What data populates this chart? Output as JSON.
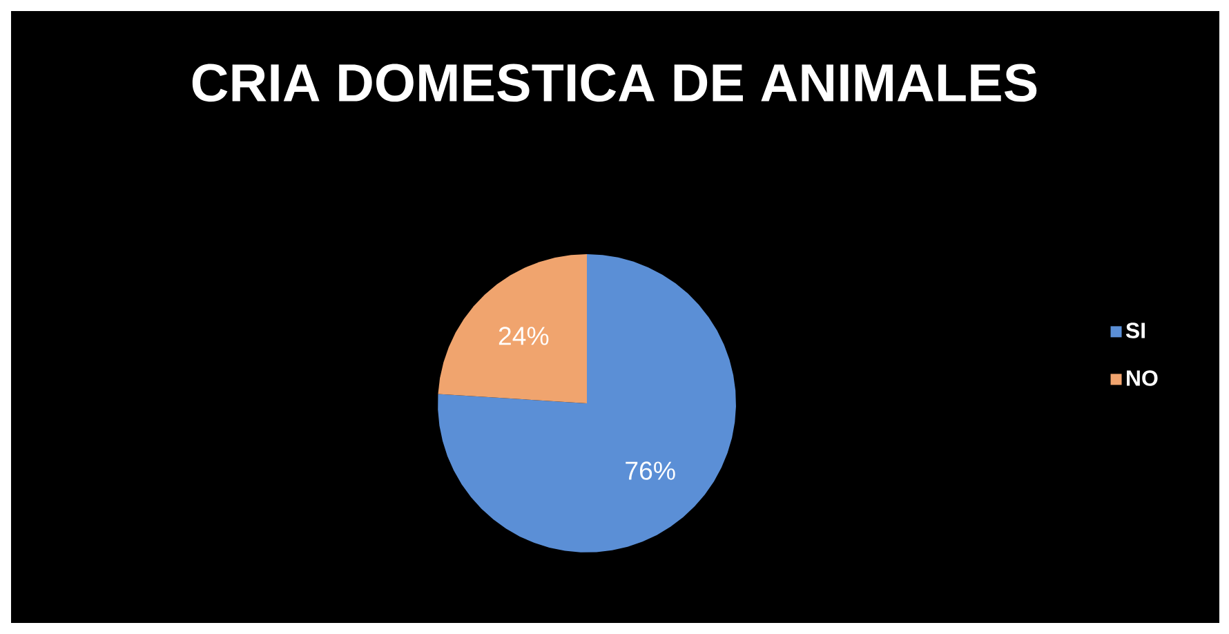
{
  "chart_data": {
    "type": "pie",
    "title": "CRIA DOMESTICA DE ANIMALES",
    "categories": [
      "SI",
      "NO"
    ],
    "values": [
      76,
      24
    ],
    "colors": [
      "#5b8fd6",
      "#f0a46e"
    ],
    "value_labels": [
      "76%",
      "24%"
    ],
    "legend": "right"
  }
}
